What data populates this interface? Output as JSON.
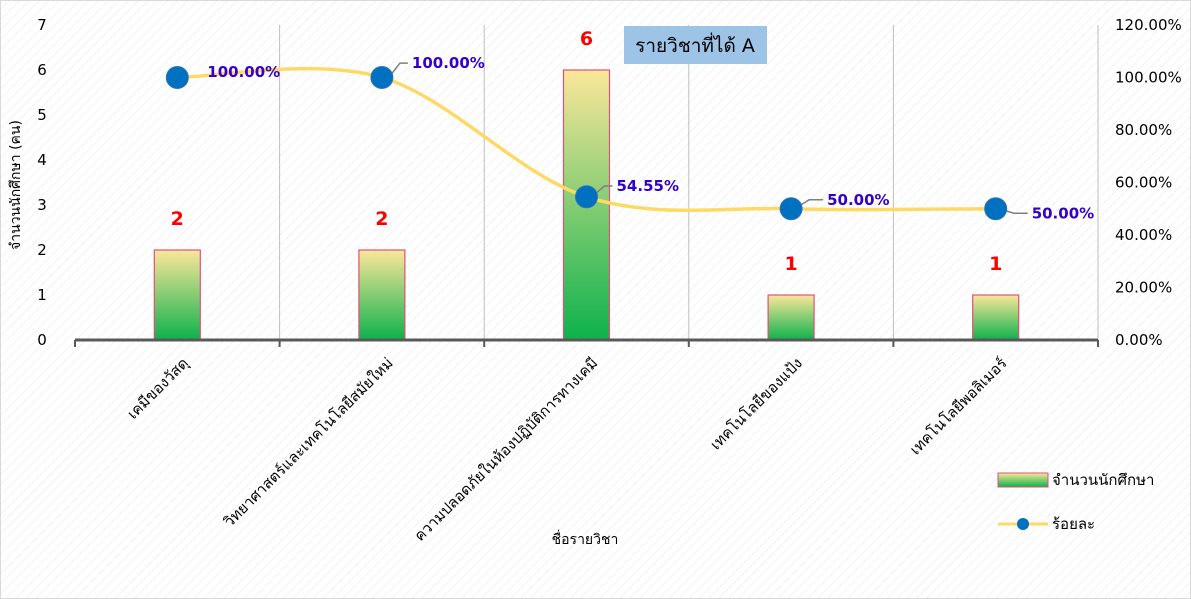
{
  "chart_data": {
    "type": "bar",
    "title": "รายวิชาที่ได้  A",
    "xlabel": "ชื่อรายวิชา",
    "ylabel": "จำนวนนักศึกษา (คน)",
    "ylim": [
      0,
      7
    ],
    "y2lim": [
      0,
      1.2
    ],
    "left_ticks": [
      "0",
      "1",
      "2",
      "3",
      "4",
      "5",
      "6",
      "7"
    ],
    "right_ticks": [
      "0.00%",
      "20.00%",
      "40.00%",
      "60.00%",
      "80.00%",
      "100.00%",
      "120.00%"
    ],
    "categories": [
      "เคมีของวัสดุ",
      "วิทยาศาสตร์และเทคโนโลยีสมัยใหม่",
      "ความปลอดภัยในห้องปฏิบัติการทางเคมี",
      "เทคโนโลยีของแป้ง",
      "เทคโนโลยีพอลิเมอร์"
    ],
    "series": [
      {
        "name": "จำนวนนักศึกษา",
        "type": "bar",
        "axis": "left",
        "values": [
          2,
          2,
          6,
          1,
          1
        ],
        "labels": [
          "2",
          "2",
          "6",
          "1",
          "1"
        ]
      },
      {
        "name": "ร้อยละ",
        "type": "line",
        "axis": "right",
        "values": [
          1.0,
          1.0,
          0.5455,
          0.5,
          0.5
        ],
        "labels": [
          "100.00%",
          "100.00%",
          "54.55%",
          "50.00%",
          "50.00%"
        ]
      }
    ],
    "legend_position": "bottom-right",
    "grid": "vertical",
    "colors": {
      "bar_top": "#fbe79a",
      "bar_bottom": "#0db24c",
      "bar_border": "#e0507a",
      "line": "#ffd966",
      "marker": "#0070c0",
      "bar_label": "#ff0000",
      "pct_label": "#3300cc",
      "title_bg": "#9dc3e6"
    }
  }
}
